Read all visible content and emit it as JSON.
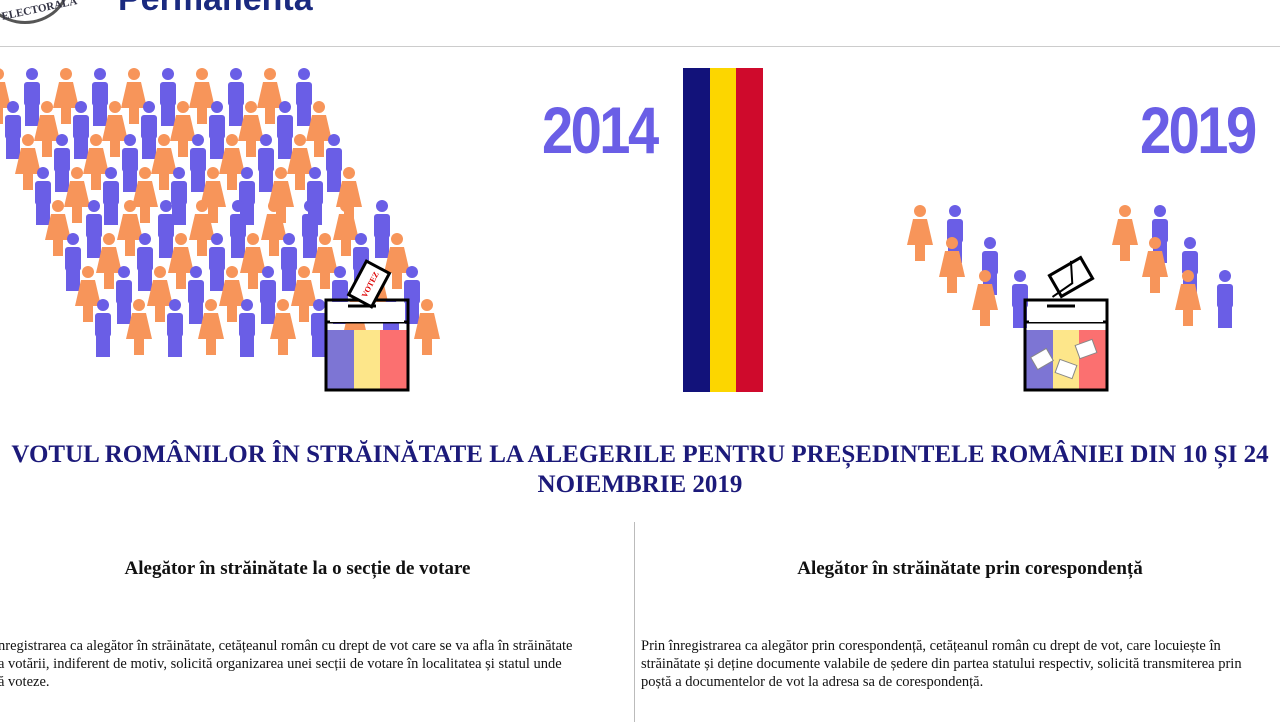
{
  "header": {
    "seal_text": "ELECTORALĂ",
    "brand": "Permanentă"
  },
  "banner": {
    "year_left": "2014",
    "year_right": "2019",
    "ballot_label": "VOTEZ",
    "colors": {
      "female": "#f7955a",
      "male": "#6a5ee6",
      "flag_blue": "#12127a",
      "flag_yellow": "#fcd600",
      "flag_red": "#cf0a2c"
    }
  },
  "title": "VOTUL ROMÂNILOR ÎN STRĂINĂTATE LA ALEGERILE PENTRU PREȘEDINTELE ROMÂNIEI DIN 10 ȘI 24 NOIEMBRIE 2019",
  "columns": [
    {
      "heading": "Alegător în străinătate la o secție de votare",
      "lines": [
        "nregistrarea ca alegător în străinătate, cetățeanul român cu drept de vot care se va afla în străinătate",
        "a votării, indiferent de motiv, solicită organizarea unei secții de votare în localitatea și statul unde",
        "ă voteze."
      ]
    },
    {
      "heading": "Alegător în străinătate prin corespondență",
      "lines": [
        "Prin înregistrarea ca alegător prin corespondență, cetățeanul român cu drept de vot, care locuiește în",
        "străinătate și deține documente valabile de ședere din partea statului respectiv, solicită transmiterea prin",
        "poștă a documentelor de vot la adresa sa de corespondență."
      ]
    }
  ]
}
